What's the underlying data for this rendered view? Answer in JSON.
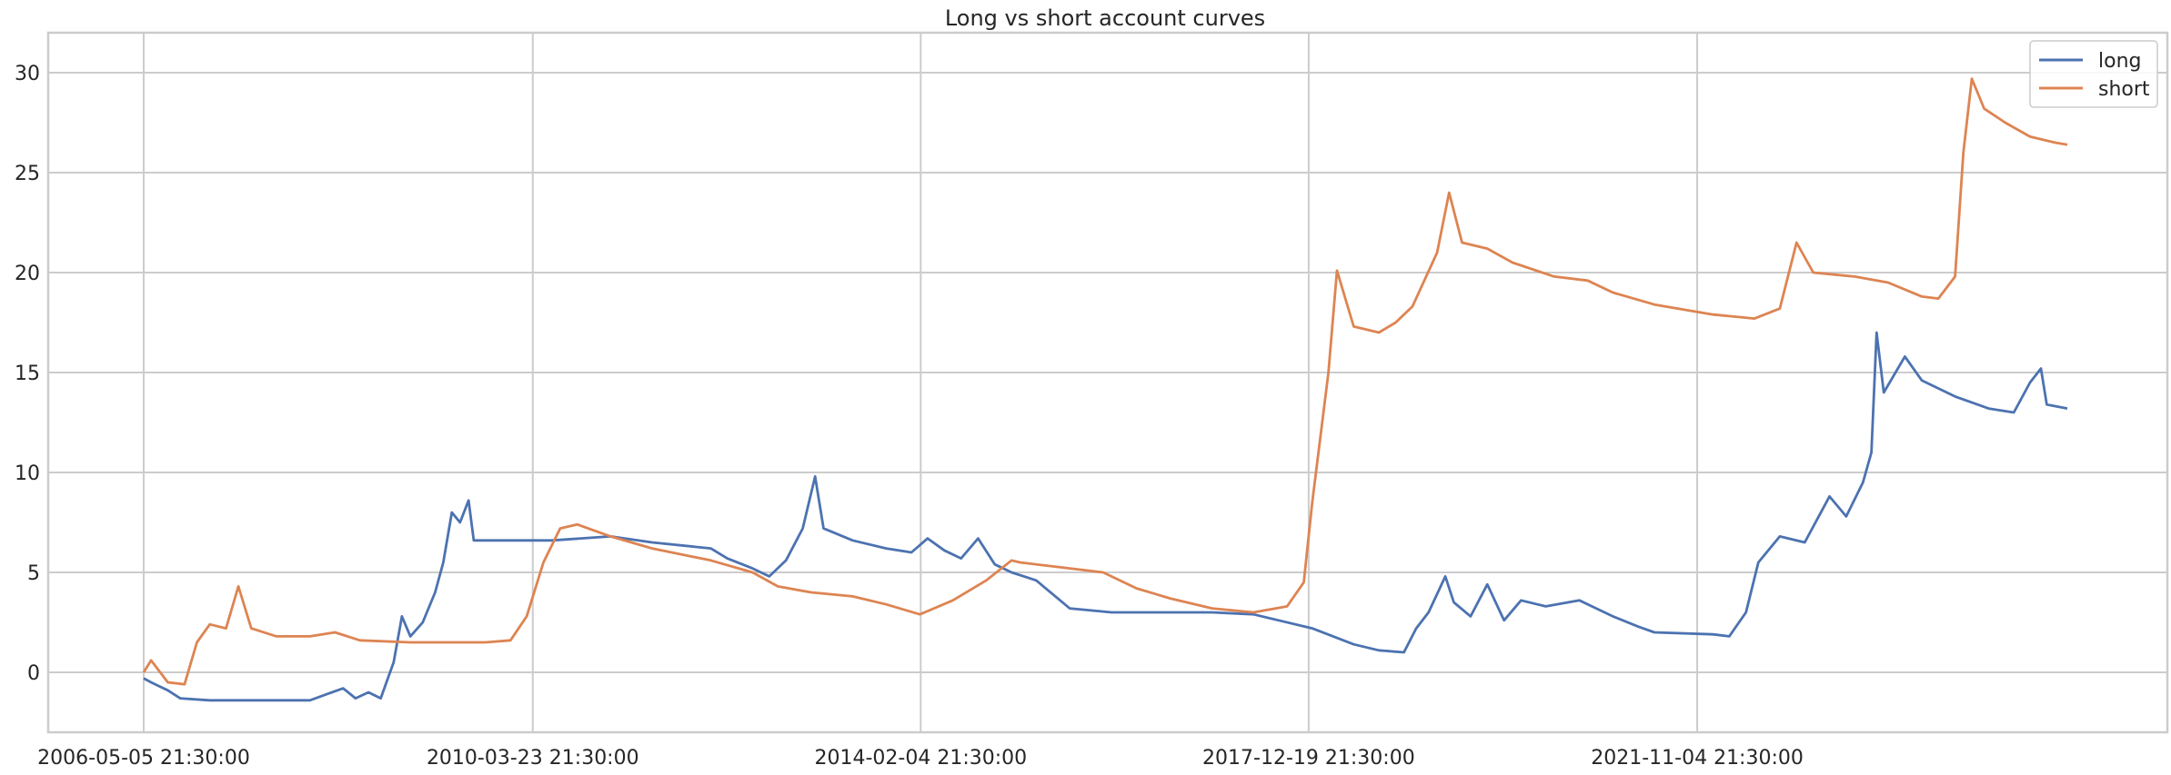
{
  "chart_data": {
    "type": "line",
    "title": "Long vs short account curves",
    "xlabel": "",
    "ylabel": "",
    "x_ticks": [
      "2006-05-05 21:30:00",
      "2010-03-23 21:30:00",
      "2014-02-04 21:30:00",
      "2017-12-19 21:30:00",
      "2021-11-04 21:30:00"
    ],
    "y_ticks": [
      0,
      5,
      10,
      15,
      20,
      25,
      30
    ],
    "xlim": [
      "2006-05-05",
      "2025-07-15"
    ],
    "ylim": [
      -3,
      32
    ],
    "grid": true,
    "legend_position": "top-right",
    "colors": {
      "long": "#4c72b0",
      "short": "#dd8452"
    },
    "series": [
      {
        "name": "long",
        "points": [
          [
            "2006-05-05",
            -0.3
          ],
          [
            "2006-06-01",
            -0.5
          ],
          [
            "2006-07-01",
            -0.7
          ],
          [
            "2006-08-01",
            -0.9
          ],
          [
            "2006-09-15",
            -1.3
          ],
          [
            "2007-01-01",
            -1.4
          ],
          [
            "2008-01-01",
            -1.4
          ],
          [
            "2008-03-01",
            -1.1
          ],
          [
            "2008-05-01",
            -0.8
          ],
          [
            "2008-06-15",
            -1.3
          ],
          [
            "2008-08-01",
            -1.0
          ],
          [
            "2008-09-15",
            -1.3
          ],
          [
            "2008-11-01",
            0.5
          ],
          [
            "2008-12-01",
            2.8
          ],
          [
            "2009-01-01",
            1.8
          ],
          [
            "2009-02-15",
            2.5
          ],
          [
            "2009-04-01",
            4.0
          ],
          [
            "2009-05-01",
            5.5
          ],
          [
            "2009-06-01",
            8.0
          ],
          [
            "2009-07-01",
            7.5
          ],
          [
            "2009-08-01",
            8.6
          ],
          [
            "2009-08-20",
            6.6
          ],
          [
            "2010-01-01",
            6.6
          ],
          [
            "2010-06-01",
            6.6
          ],
          [
            "2011-01-01",
            6.8
          ],
          [
            "2011-06-01",
            6.5
          ],
          [
            "2012-01-01",
            6.2
          ],
          [
            "2012-03-01",
            5.7
          ],
          [
            "2012-06-01",
            5.2
          ],
          [
            "2012-08-01",
            4.8
          ],
          [
            "2012-10-01",
            5.6
          ],
          [
            "2012-12-01",
            7.2
          ],
          [
            "2013-01-15",
            9.8
          ],
          [
            "2013-02-15",
            7.2
          ],
          [
            "2013-06-01",
            6.6
          ],
          [
            "2013-10-01",
            6.2
          ],
          [
            "2014-01-01",
            6.0
          ],
          [
            "2014-03-01",
            6.7
          ],
          [
            "2014-05-01",
            6.1
          ],
          [
            "2014-07-01",
            5.7
          ],
          [
            "2014-09-01",
            6.7
          ],
          [
            "2014-11-01",
            5.4
          ],
          [
            "2015-01-01",
            5.0
          ],
          [
            "2015-04-01",
            4.6
          ],
          [
            "2015-08-01",
            3.2
          ],
          [
            "2016-01-01",
            3.0
          ],
          [
            "2017-01-01",
            3.0
          ],
          [
            "2017-06-01",
            2.9
          ],
          [
            "2017-09-01",
            2.6
          ],
          [
            "2018-01-01",
            2.2
          ],
          [
            "2018-06-01",
            1.4
          ],
          [
            "2018-09-01",
            1.1
          ],
          [
            "2018-12-01",
            1.0
          ],
          [
            "2019-01-15",
            2.2
          ],
          [
            "2019-03-01",
            3.0
          ],
          [
            "2019-05-01",
            4.8
          ],
          [
            "2019-06-01",
            3.5
          ],
          [
            "2019-08-01",
            2.8
          ],
          [
            "2019-10-01",
            4.4
          ],
          [
            "2019-12-01",
            2.6
          ],
          [
            "2020-02-01",
            3.6
          ],
          [
            "2020-05-01",
            3.3
          ],
          [
            "2020-09-01",
            3.6
          ],
          [
            "2020-11-01",
            3.2
          ],
          [
            "2021-01-01",
            2.8
          ],
          [
            "2021-04-01",
            2.3
          ],
          [
            "2021-06-01",
            2.0
          ],
          [
            "2022-01-01",
            1.9
          ],
          [
            "2022-03-01",
            1.8
          ],
          [
            "2022-05-01",
            3.0
          ],
          [
            "2022-06-15",
            5.5
          ],
          [
            "2022-09-01",
            6.8
          ],
          [
            "2022-12-01",
            6.5
          ],
          [
            "2023-03-01",
            8.8
          ],
          [
            "2023-05-01",
            7.8
          ],
          [
            "2023-07-01",
            9.5
          ],
          [
            "2023-08-01",
            11.0
          ],
          [
            "2023-08-20",
            17.0
          ],
          [
            "2023-09-15",
            14.0
          ],
          [
            "2023-12-01",
            15.8
          ],
          [
            "2024-02-01",
            14.6
          ],
          [
            "2024-06-01",
            13.8
          ],
          [
            "2024-10-01",
            13.2
          ],
          [
            "2025-01-01",
            13.0
          ],
          [
            "2025-03-01",
            14.5
          ],
          [
            "2025-04-10",
            15.2
          ],
          [
            "2025-05-01",
            13.4
          ],
          [
            "2025-07-15",
            13.2
          ]
        ]
      },
      {
        "name": "short",
        "points": [
          [
            "2006-05-05",
            0.0
          ],
          [
            "2006-06-01",
            0.6
          ],
          [
            "2006-08-01",
            -0.5
          ],
          [
            "2006-10-01",
            -0.6
          ],
          [
            "2006-11-15",
            1.5
          ],
          [
            "2007-01-01",
            2.4
          ],
          [
            "2007-03-01",
            2.2
          ],
          [
            "2007-04-15",
            4.3
          ],
          [
            "2007-06-01",
            2.2
          ],
          [
            "2007-09-01",
            1.8
          ],
          [
            "2008-01-01",
            1.8
          ],
          [
            "2008-04-01",
            2.0
          ],
          [
            "2008-07-01",
            1.6
          ],
          [
            "2009-01-01",
            1.5
          ],
          [
            "2009-06-01",
            1.5
          ],
          [
            "2009-10-01",
            1.5
          ],
          [
            "2010-01-01",
            1.6
          ],
          [
            "2010-03-01",
            2.8
          ],
          [
            "2010-05-01",
            5.5
          ],
          [
            "2010-07-01",
            7.2
          ],
          [
            "2010-09-01",
            7.4
          ],
          [
            "2011-01-01",
            6.8
          ],
          [
            "2011-06-01",
            6.2
          ],
          [
            "2012-01-01",
            5.6
          ],
          [
            "2012-06-01",
            5.0
          ],
          [
            "2012-09-01",
            4.3
          ],
          [
            "2013-01-01",
            4.0
          ],
          [
            "2013-06-01",
            3.8
          ],
          [
            "2013-10-01",
            3.4
          ],
          [
            "2014-02-01",
            2.9
          ],
          [
            "2014-06-01",
            3.6
          ],
          [
            "2014-10-01",
            4.6
          ],
          [
            "2015-01-01",
            5.6
          ],
          [
            "2015-02-01",
            5.5
          ],
          [
            "2015-06-01",
            5.3
          ],
          [
            "2015-12-01",
            5.0
          ],
          [
            "2016-04-01",
            4.2
          ],
          [
            "2016-08-01",
            3.7
          ],
          [
            "2017-01-01",
            3.2
          ],
          [
            "2017-06-01",
            3.0
          ],
          [
            "2017-10-01",
            3.3
          ],
          [
            "2017-12-01",
            4.5
          ],
          [
            "2018-01-01",
            8.5
          ],
          [
            "2018-03-01",
            15.0
          ],
          [
            "2018-04-01",
            20.1
          ],
          [
            "2018-06-01",
            17.3
          ],
          [
            "2018-09-01",
            17.0
          ],
          [
            "2018-11-01",
            17.5
          ],
          [
            "2019-01-01",
            18.3
          ],
          [
            "2019-04-01",
            21.0
          ],
          [
            "2019-05-15",
            24.0
          ],
          [
            "2019-07-01",
            21.5
          ],
          [
            "2019-10-01",
            21.2
          ],
          [
            "2020-01-01",
            20.5
          ],
          [
            "2020-06-01",
            19.8
          ],
          [
            "2020-10-01",
            19.6
          ],
          [
            "2021-01-01",
            19.0
          ],
          [
            "2021-06-01",
            18.4
          ],
          [
            "2022-01-01",
            17.9
          ],
          [
            "2022-06-01",
            17.7
          ],
          [
            "2022-09-01",
            18.2
          ],
          [
            "2022-11-01",
            21.5
          ],
          [
            "2023-01-01",
            20.0
          ],
          [
            "2023-06-01",
            19.8
          ],
          [
            "2023-10-01",
            19.5
          ],
          [
            "2024-02-01",
            18.8
          ],
          [
            "2024-04-01",
            18.7
          ],
          [
            "2024-06-01",
            19.8
          ],
          [
            "2024-07-01",
            26.0
          ],
          [
            "2024-08-01",
            29.7
          ],
          [
            "2024-09-15",
            28.2
          ],
          [
            "2024-12-01",
            27.5
          ],
          [
            "2025-03-01",
            26.8
          ],
          [
            "2025-06-01",
            26.5
          ],
          [
            "2025-07-15",
            26.4
          ]
        ]
      }
    ]
  }
}
